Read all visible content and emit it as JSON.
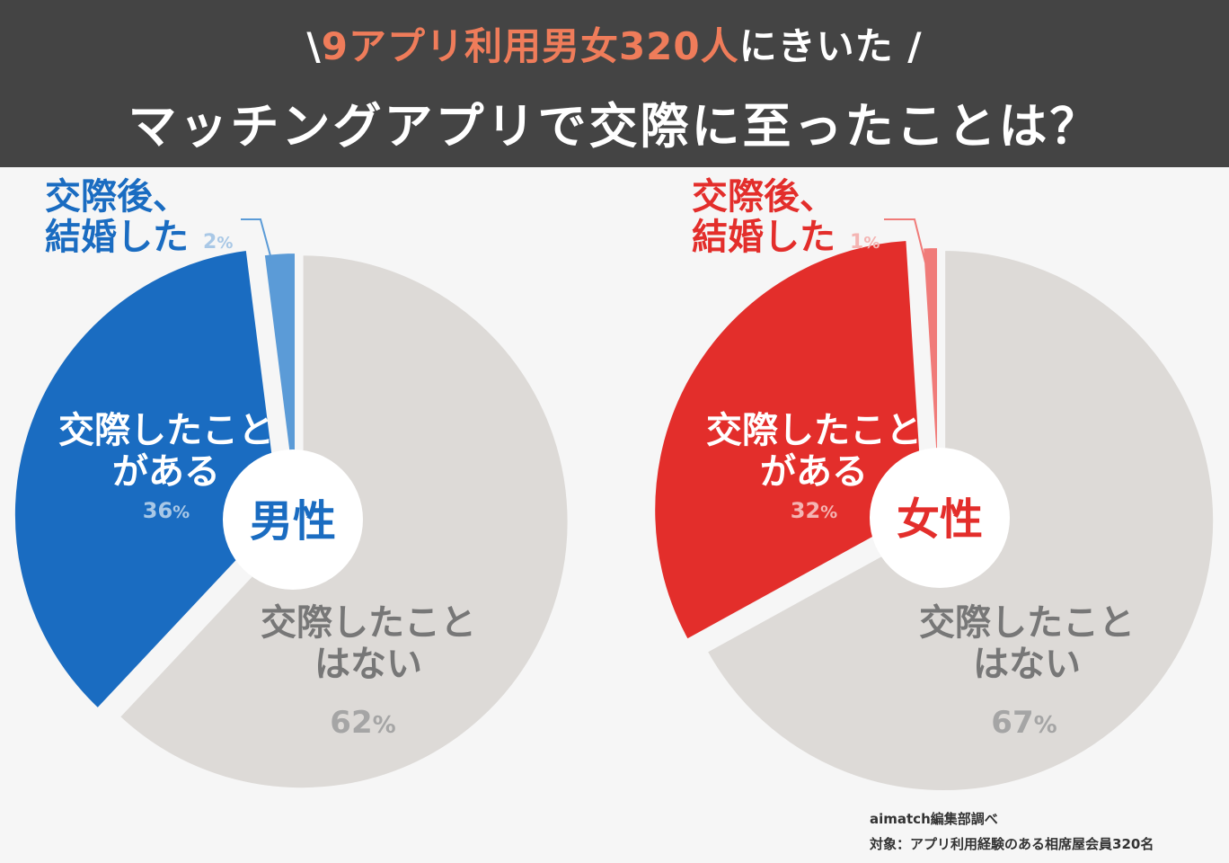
{
  "header": {
    "line1_prefix": "\\",
    "line1_highlight": "9アプリ利用男女320人",
    "line1_suffix": "にきいた /",
    "line2": "マッチングアプリで交際に至ったことは？"
  },
  "colors": {
    "header_bg": "#444444",
    "highlight": "#ef7c5a",
    "male_main": "#1a6cc1",
    "male_light": "#5b9bd7",
    "male_pct": "#a9c8e6",
    "female_main": "#e32e2b",
    "female_light": "#f07b79",
    "female_pct": "#f4b5b3",
    "gray_slice": "#dddad7",
    "gray_text": "#777777",
    "gray_pct": "#a5a5a5"
  },
  "chart_data": [
    {
      "type": "pie",
      "title": "男性",
      "categories": [
        "交際後、結婚した",
        "交際したことはない",
        "交際したことがある"
      ],
      "values": [
        2,
        62,
        36
      ],
      "unit": "%"
    },
    {
      "type": "pie",
      "title": "女性",
      "categories": [
        "交際後、結婚した",
        "交際したことはない",
        "交際したことがある"
      ],
      "values": [
        1,
        67,
        32
      ],
      "unit": "%"
    }
  ],
  "male": {
    "center": "男性",
    "married_l1": "交際後、",
    "married_l2": "結婚した",
    "married_pct": "2",
    "had_l1": "交際したこと",
    "had_l2": "がある",
    "had_pct": "36",
    "never_l1": "交際したこと",
    "never_l2": "はない",
    "never_pct": "62",
    "unit": "%"
  },
  "female": {
    "center": "女性",
    "married_l1": "交際後、",
    "married_l2": "結婚した",
    "married_pct": "1",
    "had_l1": "交際したこと",
    "had_l2": "がある",
    "had_pct": "32",
    "never_l1": "交際したこと",
    "never_l2": "はない",
    "never_pct": "67",
    "unit": "%"
  },
  "footer": {
    "source": "aimatch編集部調べ",
    "target": "対象：アプリ利用経験のある相席屋会員320名"
  }
}
